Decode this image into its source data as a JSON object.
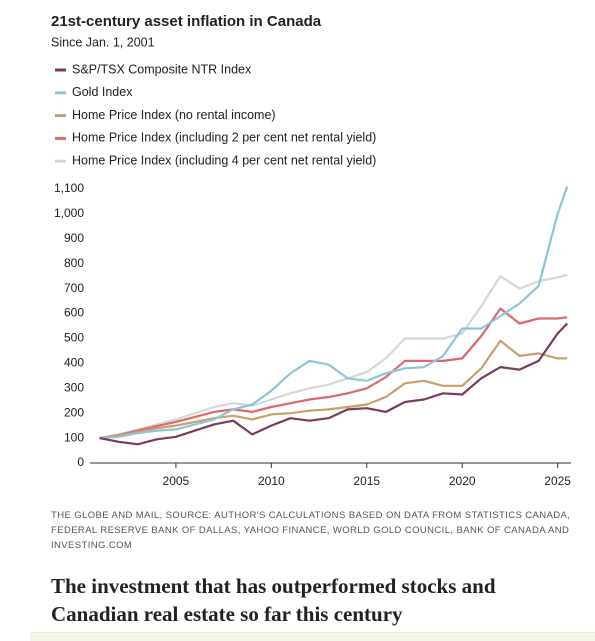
{
  "chart_data": {
    "type": "line",
    "title": "21st-century asset inflation in Canada",
    "subtitle": "Since Jan. 1, 2001",
    "source": "The Globe and Mail, Source: Author's calculations based on data from Statistics Canada, Federal Reserve Bank of Dallas, Yahoo Finance, World Gold Council, Bank of Canada and Investing.com",
    "x": [
      2001,
      2002,
      2003,
      2004,
      2005,
      2006,
      2007,
      2008,
      2009,
      2010,
      2011,
      2012,
      2013,
      2014,
      2015,
      2016,
      2017,
      2018,
      2019,
      2020,
      2021,
      2022,
      2023,
      2024,
      2025,
      2025.5
    ],
    "series": [
      {
        "name": "S&P/TSX Composite NTR Index",
        "color": "#7b3a5f",
        "values": [
          100,
          85,
          75,
          95,
          105,
          130,
          155,
          170,
          115,
          150,
          180,
          170,
          180,
          215,
          220,
          205,
          245,
          255,
          280,
          275,
          340,
          385,
          375,
          410,
          520,
          560
        ]
      },
      {
        "name": "Gold Index",
        "color": "#8ec5d6",
        "values": [
          100,
          105,
          120,
          130,
          135,
          155,
          175,
          215,
          235,
          290,
          360,
          410,
          395,
          340,
          330,
          360,
          380,
          385,
          430,
          540,
          540,
          590,
          640,
          710,
          1000,
          1110
        ]
      },
      {
        "name": "Home Price Index (no rental income)",
        "color": "#c9a06b",
        "values": [
          100,
          110,
          125,
          140,
          150,
          165,
          180,
          190,
          175,
          195,
          200,
          210,
          215,
          225,
          235,
          265,
          320,
          330,
          310,
          310,
          380,
          490,
          430,
          440,
          420,
          420
        ]
      },
      {
        "name": "Home Price Index (including 2 per cent net rental yield)",
        "color": "#d9696a",
        "values": [
          100,
          112,
          130,
          148,
          165,
          185,
          205,
          215,
          205,
          225,
          240,
          255,
          265,
          280,
          300,
          345,
          410,
          410,
          410,
          420,
          510,
          620,
          560,
          580,
          580,
          585
        ]
      },
      {
        "name": "Home Price Index (including 4 per cent net rental yield)",
        "color": "#d6d6d6",
        "values": [
          100,
          115,
          135,
          155,
          175,
          200,
          225,
          240,
          230,
          255,
          280,
          300,
          315,
          340,
          365,
          420,
          500,
          500,
          500,
          520,
          630,
          750,
          700,
          730,
          745,
          755
        ]
      }
    ],
    "xlim": [
      2000.5,
      2025.7
    ],
    "xticks": [
      2005,
      2010,
      2015,
      2020,
      2025
    ],
    "ylim": [
      0,
      1100
    ],
    "yticks": [
      0,
      100,
      200,
      300,
      400,
      500,
      600,
      700,
      800,
      900,
      {
        "value": 1000,
        "label": "1,000"
      },
      {
        "value": 1100,
        "label": "1,100"
      }
    ],
    "grid": false
  },
  "headline": "The investment that has outperformed stocks and Canadian real estate so far this century"
}
